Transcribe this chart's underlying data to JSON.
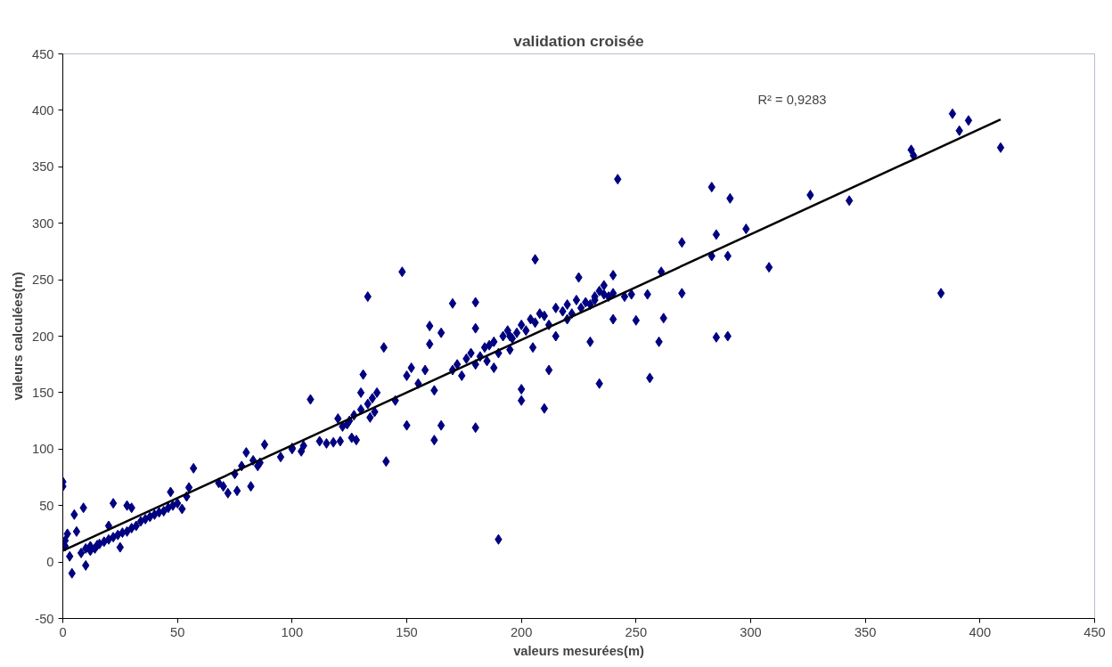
{
  "chart_data": {
    "type": "scatter",
    "title": "validation croisée",
    "xlabel": "valeurs mesurées(m)",
    "ylabel": "valeurs calculées(m)",
    "xlim": [
      0,
      450
    ],
    "xticks": [
      0,
      50,
      100,
      150,
      200,
      250,
      300,
      350,
      400,
      450
    ],
    "ylim": [
      -50,
      450
    ],
    "yticks": [
      -50,
      0,
      50,
      100,
      150,
      200,
      250,
      300,
      350,
      400,
      450
    ],
    "grid": false,
    "marker": "diamond",
    "annotations": [
      "R² = 0,9283"
    ],
    "series": [
      {
        "color": "#000080",
        "x": [
          0,
          0,
          1,
          2,
          1,
          3,
          4,
          5,
          6,
          9,
          10,
          12,
          15,
          20,
          22,
          25,
          28,
          30,
          38,
          47,
          57,
          52,
          70,
          72,
          76,
          80,
          82,
          88,
          95,
          108,
          100,
          104,
          120,
          128,
          133,
          141,
          148,
          150,
          162,
          160,
          165,
          170,
          180,
          180,
          190,
          200,
          200,
          210,
          206,
          212,
          234,
          242,
          256,
          260,
          255,
          262,
          270,
          270,
          261,
          283,
          283,
          285,
          290,
          291,
          290,
          285,
          298,
          308,
          326,
          343,
          370,
          371,
          383,
          388,
          391,
          395,
          409,
          230,
          248,
          250,
          220,
          215,
          195,
          240,
          236,
          232,
          240,
          225,
          122,
          125,
          127,
          130,
          130,
          131,
          133,
          134,
          135,
          136,
          137,
          140,
          145,
          150,
          152,
          155,
          158,
          160,
          162,
          165,
          170,
          172,
          174,
          176,
          178,
          180,
          182,
          184,
          186,
          188,
          190,
          192,
          194,
          196,
          198,
          200,
          202,
          204,
          206,
          208,
          210,
          212,
          215,
          218,
          220,
          222,
          224,
          226,
          228,
          230,
          232,
          234,
          236,
          238,
          240,
          245,
          180,
          185,
          188,
          195,
          205,
          8,
          10,
          12,
          14,
          16,
          18,
          20,
          22,
          24,
          26,
          28,
          30,
          32,
          34,
          36,
          40,
          42,
          44,
          46,
          48,
          50,
          54,
          55,
          68,
          75,
          78,
          83,
          85,
          86,
          100,
          105,
          112,
          115,
          118,
          121,
          124,
          126
        ],
        "values": [
          71,
          67,
          19,
          25,
          14,
          5,
          -10,
          42,
          27,
          48,
          -3,
          10,
          15,
          32,
          52,
          13,
          50,
          48,
          40,
          62,
          83,
          47,
          67,
          61,
          63,
          97,
          67,
          104,
          93,
          144,
          100,
          98,
          127,
          108,
          235,
          89,
          257,
          121,
          108,
          209,
          121,
          229,
          119,
          230,
          20,
          143,
          153,
          136,
          268,
          170,
          158,
          339,
          163,
          195,
          237,
          216,
          283,
          238,
          257,
          332,
          271,
          199,
          200,
          322,
          271,
          290,
          295,
          261,
          325,
          320,
          365,
          360,
          238,
          397,
          382,
          391,
          367,
          195,
          237,
          214,
          215,
          200,
          200,
          215,
          237,
          232,
          254,
          252,
          120,
          125,
          130,
          135,
          150,
          166,
          140,
          128,
          145,
          133,
          150,
          190,
          143,
          165,
          172,
          158,
          170,
          193,
          152,
          203,
          170,
          175,
          165,
          180,
          185,
          175,
          182,
          190,
          192,
          195,
          185,
          200,
          205,
          198,
          203,
          210,
          205,
          215,
          212,
          220,
          218,
          210,
          225,
          222,
          228,
          220,
          232,
          225,
          230,
          228,
          235,
          240,
          245,
          235,
          238,
          235,
          207,
          178,
          172,
          188,
          190,
          8,
          12,
          14,
          12,
          16,
          18,
          20,
          22,
          24,
          26,
          27,
          30,
          32,
          36,
          38,
          42,
          44,
          45,
          48,
          50,
          52,
          58,
          66,
          70,
          78,
          85,
          90,
          85,
          88,
          101,
          103,
          107,
          105,
          106,
          107,
          122,
          110
        ]
      },
      {
        "type": "line",
        "color": "#000000",
        "marker": "none",
        "line_style": "solid",
        "x": [
          0,
          409
        ],
        "values": [
          10,
          392
        ]
      }
    ]
  }
}
